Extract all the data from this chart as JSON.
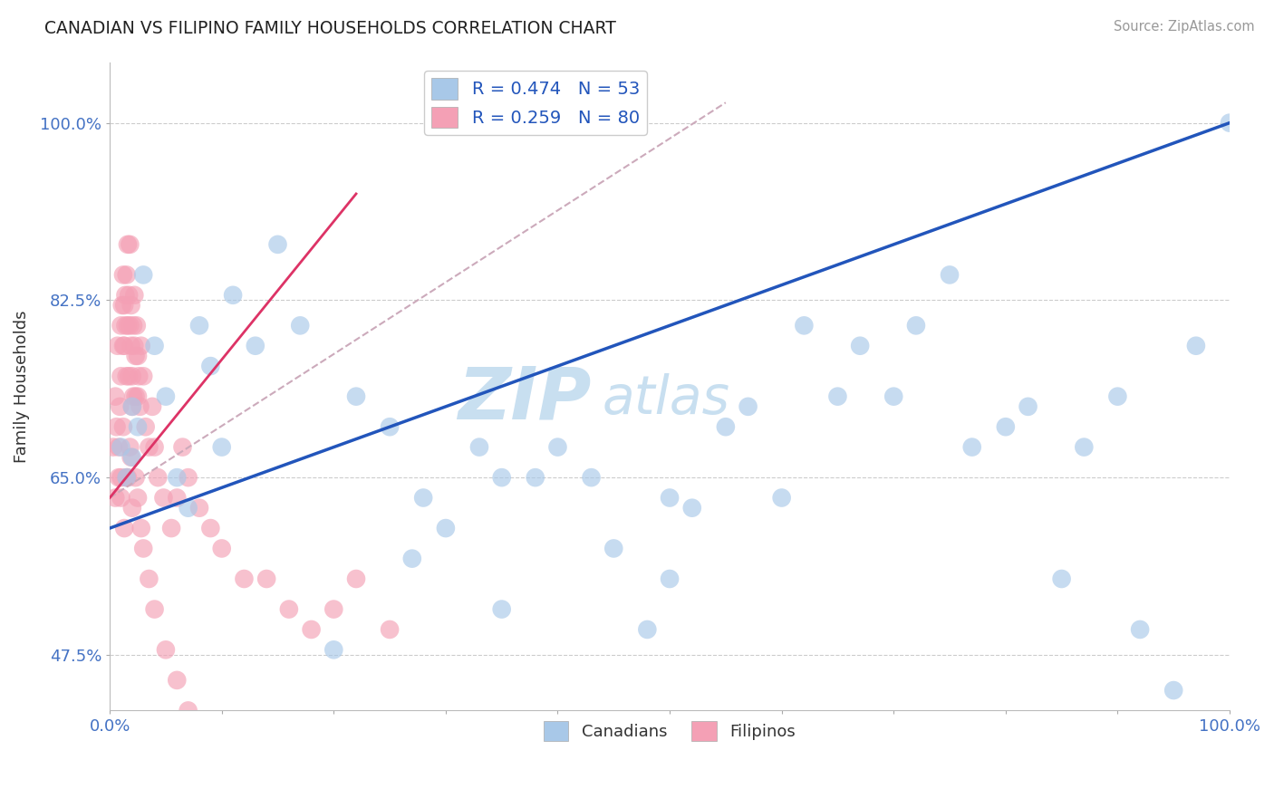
{
  "title": "CANADIAN VS FILIPINO FAMILY HOUSEHOLDS CORRELATION CHART",
  "source_text": "Source: ZipAtlas.com",
  "ylabel": "Family Households",
  "xlim": [
    0.0,
    1.0
  ],
  "ylim": [
    0.42,
    1.06
  ],
  "yticks": [
    0.475,
    0.65,
    0.825,
    1.0
  ],
  "ytick_labels": [
    "47.5%",
    "65.0%",
    "82.5%",
    "100.0%"
  ],
  "xticks": [
    0.0,
    0.1,
    0.2,
    0.3,
    0.4,
    0.5,
    0.6,
    0.7,
    0.8,
    0.9,
    1.0
  ],
  "xtick_labels": [
    "0.0%",
    "",
    "",
    "",
    "",
    "",
    "",
    "",
    "",
    "",
    "100.0%"
  ],
  "background_color": "#ffffff",
  "grid_color": "#cccccc",
  "title_color": "#2c3e50",
  "axis_color": "#4472c4",
  "watermark_zip": "ZIP",
  "watermark_atlas": "atlas",
  "watermark_color_zip": "#c8dff0",
  "watermark_color_atlas": "#c8dff0",
  "legend_r1": "R = 0.474",
  "legend_n1": "N = 53",
  "legend_r2": "R = 0.259",
  "legend_n2": "N = 80",
  "blue_color": "#a8c8e8",
  "pink_color": "#f4a0b5",
  "trendline_blue": "#2255bb",
  "trendline_pink": "#dd3366",
  "trendline_gray": "#ccaabb",
  "canadians_x": [
    0.01,
    0.015,
    0.02,
    0.02,
    0.025,
    0.03,
    0.04,
    0.05,
    0.06,
    0.07,
    0.08,
    0.09,
    0.1,
    0.11,
    0.13,
    0.15,
    0.17,
    0.2,
    0.22,
    0.25,
    0.28,
    0.3,
    0.33,
    0.35,
    0.38,
    0.4,
    0.43,
    0.45,
    0.48,
    0.5,
    0.52,
    0.55,
    0.57,
    0.6,
    0.62,
    0.65,
    0.67,
    0.7,
    0.72,
    0.75,
    0.77,
    0.8,
    0.82,
    0.85,
    0.87,
    0.9,
    0.92,
    0.95,
    0.97,
    1.0,
    0.5,
    0.27,
    0.35
  ],
  "canadians_y": [
    0.68,
    0.65,
    0.67,
    0.72,
    0.7,
    0.85,
    0.78,
    0.73,
    0.65,
    0.62,
    0.8,
    0.76,
    0.68,
    0.83,
    0.78,
    0.88,
    0.8,
    0.48,
    0.73,
    0.7,
    0.63,
    0.6,
    0.68,
    0.65,
    0.65,
    0.68,
    0.65,
    0.58,
    0.5,
    0.55,
    0.62,
    0.7,
    0.72,
    0.63,
    0.8,
    0.73,
    0.78,
    0.73,
    0.8,
    0.85,
    0.68,
    0.7,
    0.72,
    0.55,
    0.68,
    0.73,
    0.5,
    0.44,
    0.78,
    1.0,
    0.63,
    0.57,
    0.52
  ],
  "filipinos_x": [
    0.003,
    0.005,
    0.006,
    0.007,
    0.008,
    0.009,
    0.01,
    0.01,
    0.011,
    0.012,
    0.012,
    0.013,
    0.013,
    0.014,
    0.014,
    0.015,
    0.015,
    0.016,
    0.016,
    0.017,
    0.017,
    0.018,
    0.018,
    0.019,
    0.019,
    0.02,
    0.02,
    0.021,
    0.021,
    0.022,
    0.022,
    0.023,
    0.023,
    0.024,
    0.025,
    0.025,
    0.026,
    0.027,
    0.028,
    0.03,
    0.032,
    0.035,
    0.038,
    0.04,
    0.043,
    0.048,
    0.055,
    0.06,
    0.065,
    0.07,
    0.08,
    0.09,
    0.1,
    0.12,
    0.14,
    0.16,
    0.18,
    0.2,
    0.22,
    0.25,
    0.005,
    0.008,
    0.01,
    0.012,
    0.015,
    0.018,
    0.02,
    0.023,
    0.025,
    0.028,
    0.03,
    0.035,
    0.04,
    0.05,
    0.06,
    0.07,
    0.01,
    0.013,
    0.016,
    0.019
  ],
  "filipinos_y": [
    0.68,
    0.73,
    0.7,
    0.78,
    0.65,
    0.72,
    0.8,
    0.75,
    0.82,
    0.78,
    0.85,
    0.82,
    0.78,
    0.8,
    0.83,
    0.75,
    0.85,
    0.88,
    0.8,
    0.83,
    0.75,
    0.8,
    0.88,
    0.78,
    0.82,
    0.72,
    0.75,
    0.8,
    0.73,
    0.78,
    0.83,
    0.73,
    0.77,
    0.8,
    0.73,
    0.77,
    0.75,
    0.72,
    0.78,
    0.75,
    0.7,
    0.68,
    0.72,
    0.68,
    0.65,
    0.63,
    0.6,
    0.63,
    0.68,
    0.65,
    0.62,
    0.6,
    0.58,
    0.55,
    0.55,
    0.52,
    0.5,
    0.52,
    0.55,
    0.5,
    0.63,
    0.68,
    0.65,
    0.7,
    0.65,
    0.68,
    0.62,
    0.65,
    0.63,
    0.6,
    0.58,
    0.55,
    0.52,
    0.48,
    0.45,
    0.42,
    0.63,
    0.6,
    0.65,
    0.67
  ],
  "blue_trendline_x": [
    0.0,
    1.0
  ],
  "blue_trendline_y": [
    0.6,
    1.0
  ],
  "pink_trendline_x": [
    0.0,
    0.22
  ],
  "pink_trendline_y": [
    0.63,
    0.93
  ],
  "gray_trendline_x": [
    0.0,
    0.55
  ],
  "gray_trendline_y": [
    0.63,
    1.02
  ]
}
